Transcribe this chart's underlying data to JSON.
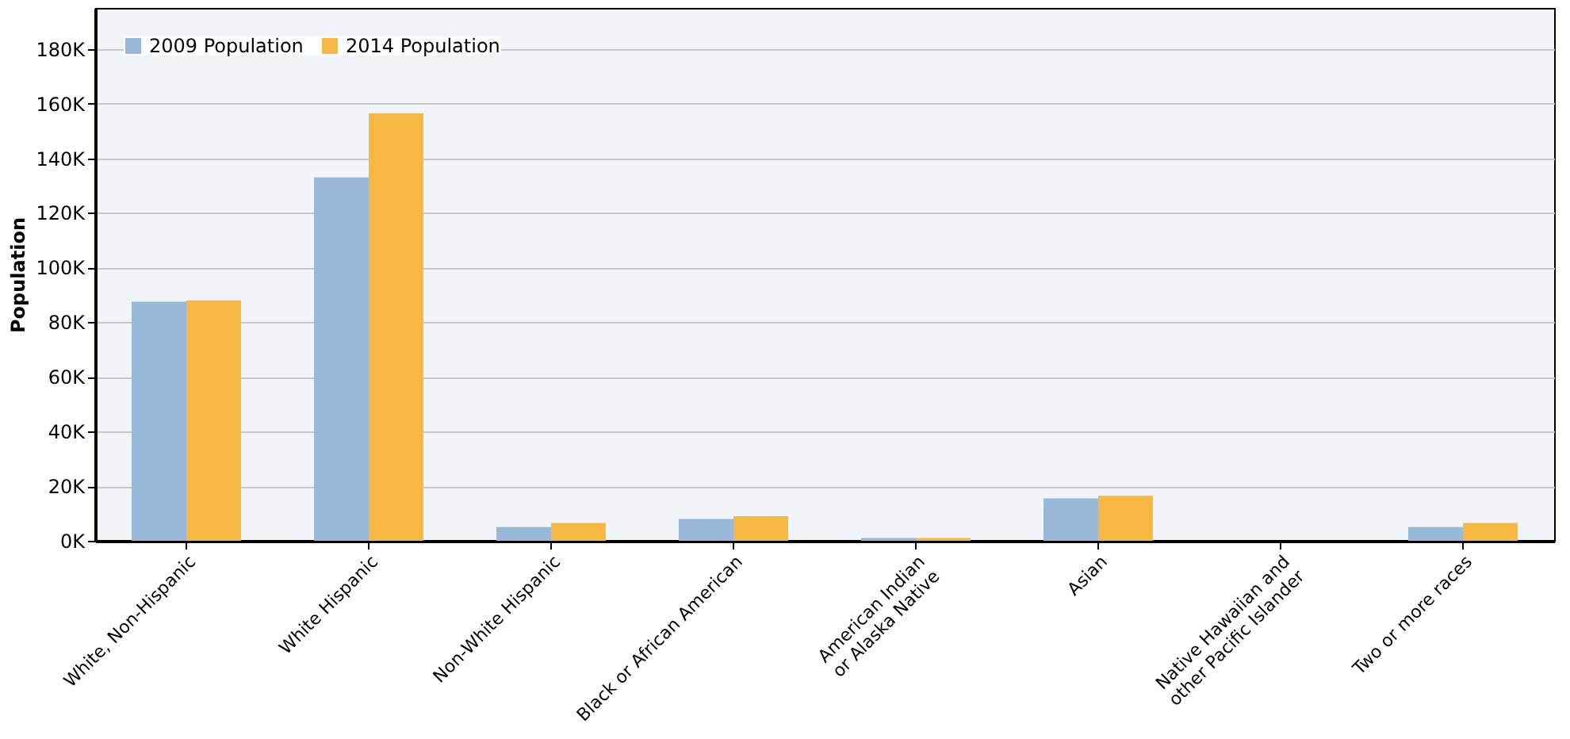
{
  "chart_data": {
    "type": "bar",
    "ylabel": "Population",
    "categories": [
      "White, Non-Hispanic",
      "White Hispanic",
      "Non-White Hispanic",
      "Black or African American",
      "American Indian or Alaska Native",
      "Asian",
      "Native Hawaiian and other Pacific Islander",
      "Two or more races"
    ],
    "series": [
      {
        "name": "2009 Population",
        "color": "#9ab8d8",
        "values": [
          87500,
          133000,
          5000,
          8000,
          1000,
          15500,
          0,
          5000
        ]
      },
      {
        "name": "2014 Population",
        "color": "#f7b844",
        "values": [
          88000,
          156500,
          6500,
          9000,
          1000,
          16500,
          0,
          6500
        ]
      }
    ],
    "ylim": [
      0,
      195000
    ],
    "yticks": [
      {
        "value": 0,
        "label": "0K"
      },
      {
        "value": 20000,
        "label": "20K"
      },
      {
        "value": 40000,
        "label": "40K"
      },
      {
        "value": 60000,
        "label": "60K"
      },
      {
        "value": 80000,
        "label": "80K"
      },
      {
        "value": 100000,
        "label": "100K"
      },
      {
        "value": 120000,
        "label": "120K"
      },
      {
        "value": 140000,
        "label": "140K"
      },
      {
        "value": 160000,
        "label": "160K"
      },
      {
        "value": 180000,
        "label": "180K"
      }
    ],
    "grid": "y",
    "legend": "top left"
  }
}
